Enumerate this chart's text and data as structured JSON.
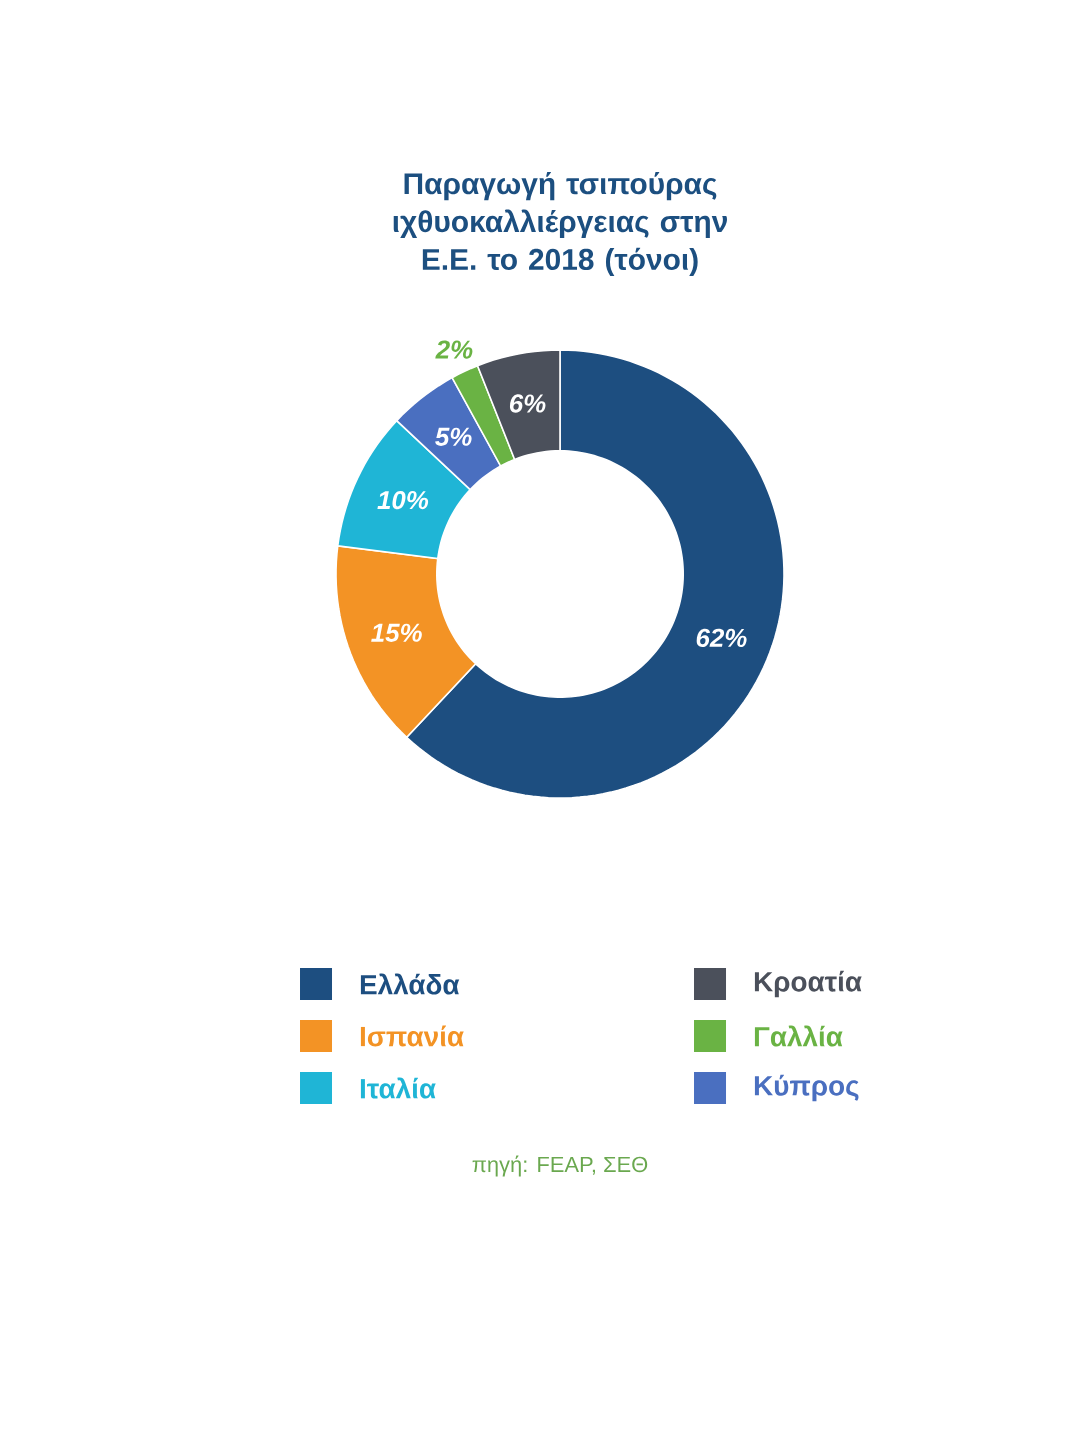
{
  "chart_data": {
    "type": "donut",
    "title": "Παραγωγή τσιπούρας ιχθυοκαλλιέργειας στην Ε.Ε. το 2018 (τόνοι)",
    "categories": [
      "Ελλάδα",
      "Ισπανία",
      "Ιταλία",
      "Κύπρος",
      "Γαλλία",
      "Κροατία"
    ],
    "values": [
      62,
      15,
      10,
      5,
      2,
      6
    ],
    "value_labels": [
      "62%",
      "15%",
      "10%",
      "5%",
      "2%",
      "6%"
    ],
    "colors": [
      "#1d4e80",
      "#f39325",
      "#1fb5d6",
      "#4a6fc0",
      "#6ab344",
      "#4b505b"
    ],
    "legend": "bottom",
    "annotations": [
      "πηγή: FEAP, ΣΕΘ"
    ]
  }
}
